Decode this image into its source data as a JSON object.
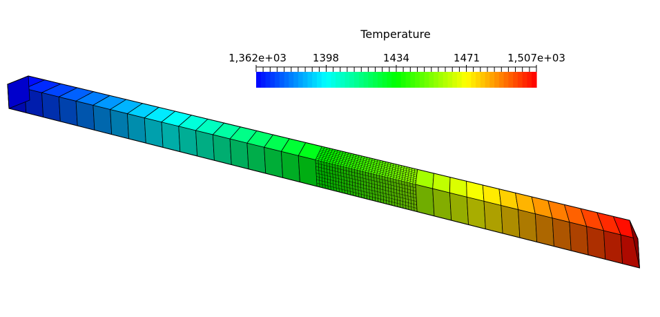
{
  "legend": {
    "title": "Temperature",
    "tick_labels": [
      "1,362e+03",
      "1398",
      "1434",
      "1471",
      "1,507e+03"
    ],
    "min": 1362,
    "max": 1507
  },
  "colormap": [
    "#0000ff",
    "#00ffff",
    "#00ff00",
    "#ffff00",
    "#ff0000"
  ],
  "mesh": {
    "coarse_cells_left": 18,
    "fine_cells": 36,
    "coarse_cells_right": 13,
    "min_temperature": 1362,
    "max_temperature": 1507
  }
}
